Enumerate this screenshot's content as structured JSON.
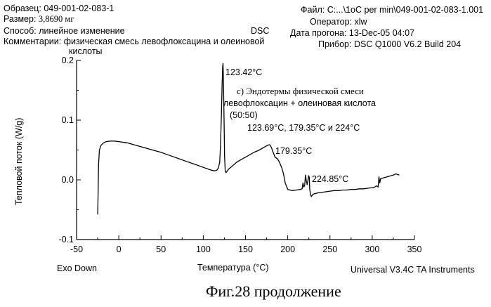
{
  "header": {
    "sample_label": "Образец:",
    "sample_value": "049-001-02-083-1",
    "size_label": "Размер:",
    "size_value": "3,8690 мг",
    "method_label": "Способ:",
    "method_value": "линейное изменение",
    "comment_label": "Комментарии:",
    "comment_value_line1": "физическая смесь левофлоксацина и олеиновой",
    "comment_value_line2": "кислоты",
    "technique": "DSC",
    "file_label": "Файл:",
    "file_value": "C:...\\1oC per min\\049-001-02-083-1.001",
    "operator_label": "Оператор:",
    "operator_value": "xlw",
    "run_date_label": "Дата прогона:",
    "run_date_value": "13-Dec-05 04:07",
    "instrument_label": "Прибор:",
    "instrument_value": "DSC Q1000 V6.2 Build 204"
  },
  "footer": {
    "exo": "Exo Down",
    "software": "Universal V3.4C TA Instruments",
    "figure_caption": "Фиг.28 продолжение"
  },
  "annotations": {
    "peak1": "123.42°C",
    "peak2": "179.35°C",
    "peak3": "224.85°C",
    "note_line1": "c) Эндотермы физической смеси",
    "note_line2": "левофлоксацин  + олеиновая кислота",
    "note_line3": "(50:50)",
    "note_line4": "123.69°C, 179.35°C  и  224°C"
  },
  "colors": {
    "line": "#000000",
    "background": "#ffffff"
  },
  "chart_data": {
    "type": "line",
    "title": "",
    "xlabel": "Температура (°C)",
    "ylabel": "Тепловой поток (W/g)",
    "xlim": [
      -50,
      350
    ],
    "ylim": [
      -0.1,
      0.2
    ],
    "x_ticks": [
      -50,
      0,
      50,
      100,
      150,
      200,
      250,
      300,
      350
    ],
    "y_ticks": [
      -0.1,
      0.0,
      0.1,
      0.2
    ],
    "x_tick_labels": [
      "-50",
      "0",
      "50",
      "100",
      "150",
      "200",
      "250",
      "300",
      "350"
    ],
    "y_tick_labels": [
      "-0.1",
      "0.0",
      "0.1",
      "0.2"
    ],
    "grid": false,
    "series": [
      {
        "x": [
          -25,
          -24.5,
          -24,
          -23,
          -21,
          -18,
          -15,
          -10,
          -5,
          0,
          10,
          20,
          30,
          40,
          50,
          60,
          70,
          80,
          90,
          100,
          108,
          113,
          116,
          118,
          119.5,
          120.5,
          121.5,
          122.3,
          123,
          123.42,
          124,
          124.6,
          125.2,
          126,
          127,
          130,
          135,
          140,
          145,
          150,
          155,
          160,
          165,
          170,
          175,
          178,
          179.35,
          181,
          183,
          185,
          188,
          190,
          193,
          195,
          197,
          200,
          205,
          210,
          215,
          217,
          218,
          219,
          220,
          221,
          222,
          223,
          224,
          224.85,
          225.5,
          226,
          227,
          228,
          230,
          235,
          240,
          245,
          250,
          255,
          260,
          265,
          270,
          275,
          280,
          285,
          290,
          295,
          300,
          303,
          305,
          307,
          308,
          309,
          310,
          315,
          320,
          325,
          328,
          330,
          332
        ],
        "y": [
          -0.058,
          -0.02,
          0.025,
          0.05,
          0.058,
          0.062,
          0.064,
          0.065,
          0.065,
          0.064,
          0.062,
          0.058,
          0.054,
          0.05,
          0.046,
          0.041,
          0.036,
          0.031,
          0.026,
          0.021,
          0.017,
          0.015,
          0.016,
          0.02,
          0.03,
          0.06,
          0.11,
          0.16,
          0.19,
          0.195,
          0.16,
          0.1,
          0.04,
          0.015,
          0.012,
          0.018,
          0.024,
          0.03,
          0.034,
          0.038,
          0.042,
          0.046,
          0.049,
          0.053,
          0.057,
          0.059,
          0.058,
          0.053,
          0.045,
          0.038,
          0.035,
          0.03,
          0.02,
          0.01,
          -0.005,
          -0.016,
          -0.018,
          -0.017,
          -0.016,
          -0.015,
          -0.005,
          -0.012,
          -0.01,
          0.008,
          -0.002,
          -0.008,
          0.0,
          0.007,
          0.004,
          -0.015,
          -0.025,
          -0.028,
          -0.024,
          -0.022,
          -0.021,
          -0.02,
          -0.019,
          -0.018,
          -0.018,
          -0.017,
          -0.017,
          -0.016,
          -0.016,
          -0.015,
          -0.015,
          -0.014,
          -0.013,
          -0.012,
          -0.01,
          -0.012,
          0.005,
          -0.005,
          0.002,
          0.004,
          0.006,
          0.008,
          0.01,
          0.009,
          0.008
        ]
      }
    ]
  }
}
